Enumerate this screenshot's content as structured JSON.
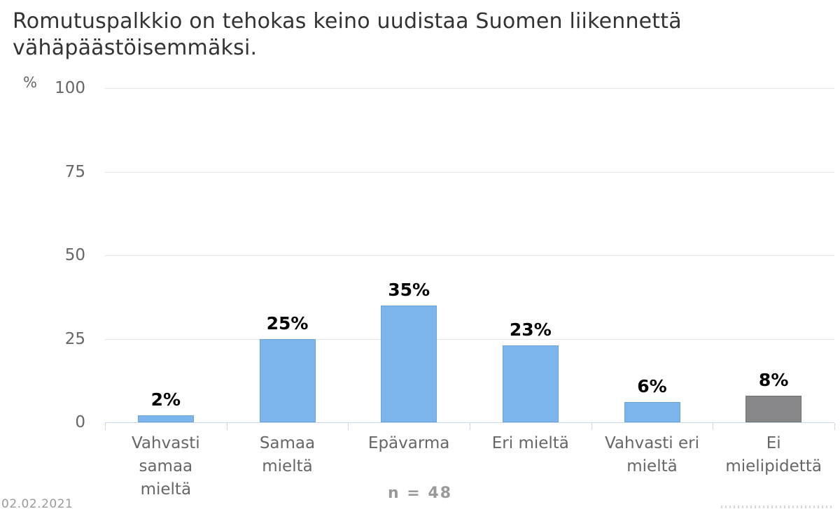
{
  "title": {
    "full": "Romutuspalkkio on tehokas keino uudistaa Suomen liikennettä vähäpäästöisemmäksi.",
    "line1": "Romutuspalkkio on tehokas keino uudistaa Suomen liikennettä",
    "line2": "vähäpäästöisemmäksi."
  },
  "chart_data": {
    "type": "bar",
    "title": "Romutuspalkkio on tehokas keino uudistaa Suomen liikennettä vähäpäästöisemmäksi.",
    "categories": [
      "Vahvasti samaa mieltä",
      "Samaa mieltä",
      "Epävarma",
      "Eri mieltä",
      "Vahvasti eri mieltä",
      "Ei mielipidettä"
    ],
    "category_lines": [
      [
        "Vahvasti",
        "samaa",
        "mieltä"
      ],
      [
        "Samaa",
        "mieltä"
      ],
      [
        "Epävarma"
      ],
      [
        "Eri mieltä"
      ],
      [
        "Vahvasti eri",
        "mieltä"
      ],
      [
        "Ei",
        "mielipidettä"
      ]
    ],
    "values": [
      2,
      25,
      35,
      23,
      6,
      8
    ],
    "data_labels": [
      "2%",
      "25%",
      "35%",
      "23%",
      "6%",
      "8%"
    ],
    "bar_colors": [
      "#7cb5ec",
      "#7cb5ec",
      "#7cb5ec",
      "#7cb5ec",
      "#7cb5ec",
      "#87878a"
    ],
    "bar_border_colors": [
      "#69a4da",
      "#69a4da",
      "#69a4da",
      "#69a4da",
      "#69a4da",
      "#707073"
    ],
    "xlabel": "",
    "ylabel": "%",
    "ylim": [
      0,
      100
    ],
    "yticks": [
      0,
      25,
      50,
      75,
      100
    ],
    "grid": true,
    "legend": "none",
    "sample_size_note": "n = 48"
  },
  "footer": {
    "n_label": "n = 48",
    "date": "02.02.2021"
  },
  "colors": {
    "grid_line": "#e6e6e6",
    "axis_line": "#ccd6eb",
    "tick_label": "#666666",
    "category_label": "#666666",
    "data_label": "#000000",
    "title_text": "#333333",
    "note_text": "#999999",
    "bar_blue": "#7cb5ec",
    "bar_gray": "#87878a"
  }
}
